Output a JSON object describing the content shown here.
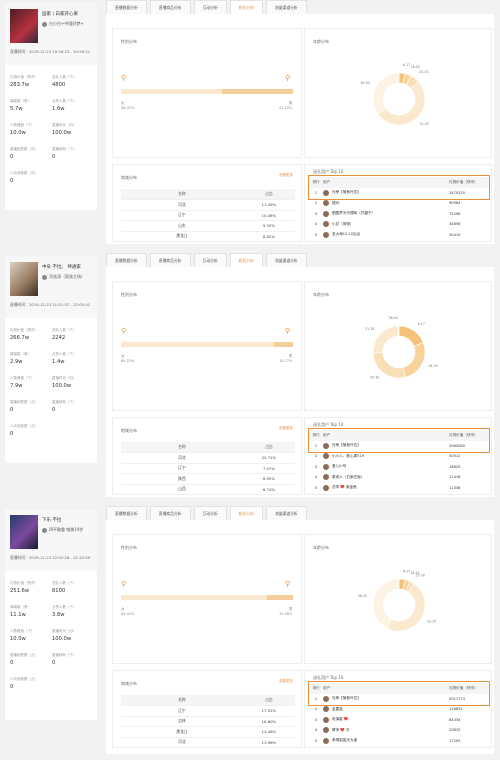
{
  "tabs": [
    "直播数据分析",
    "直播商品分析",
    "互动分析",
    "粉丝分析",
    "流量渠道分析"
  ],
  "active_tab": 3,
  "colors": {
    "accent": "#ee8e3b",
    "donut": [
      "#f5c27a",
      "#f7d29b",
      "#f9dfb6",
      "#fbe9cf",
      "#fdf3e4",
      "#f6b560"
    ]
  },
  "labels": {
    "gender": "性别分布",
    "age": "年龄分布",
    "region": "地域分布",
    "more": "查看更多",
    "region_col1": "名称",
    "region_col2": "占比",
    "top10": "送礼用户 Top 10",
    "col_rank": "排行",
    "col_user": "用户",
    "col_value": "礼物价值（快币）",
    "female": "女",
    "male": "男",
    "stat_labels": [
      "礼物价值（快币）",
      "送礼人数（个）",
      "弹幕数（条）",
      "点赞人数（个）",
      "人数峰值（个）",
      "直播时长（分）",
      "直播销售额（元）",
      "直播转粉（个）",
      "人均消费额（元）"
    ]
  },
  "panels": [
    {
      "anchor": "国家丨白家开心果",
      "tag": "白小白+中国好梦+",
      "time": "直播时间：2019-12-23 19:34:23 - 20:59:21",
      "stats": [
        "283.7w",
        "4800",
        "5.7w",
        "1.6w",
        "10.0w",
        "100.0w",
        "0",
        "0",
        "0"
      ],
      "female_pct": "58.47%",
      "male_pct": "41.53%",
      "female_ratio": 0.5847,
      "age_slices": [
        3.8,
        3.8,
        5.8,
        51.7,
        34.9
      ],
      "age_labels": [
        "6-17",
        "18-24",
        "25-30",
        "31-35",
        "36-40"
      ],
      "region": [
        [
          "河北",
          "11.49%"
        ],
        [
          "辽宁",
          "10.46%"
        ],
        [
          "山东",
          "9.33%"
        ],
        [
          "黑龙江",
          "8.82%"
        ],
        [
          "河南",
          "8.62%"
        ]
      ],
      "top10": [
        [
          "1",
          "光荣【葡萄叶拉】",
          "2470320"
        ],
        [
          "2",
          "德州",
          "90964"
        ],
        [
          "3",
          "图图梦天代理商（托捷子）",
          "75296"
        ],
        [
          "4",
          "小花（荷物）",
          "34656"
        ],
        [
          "5",
          "圣大海12.10后出",
          "30410"
        ]
      ]
    },
    {
      "anchor": "中朵 不拉。 神通家",
      "tag": "司兆涛（家族主场）",
      "time": "直播时间：2019-12-23 21:01:07 - 22:05:41",
      "stats": [
        "266.7w",
        "2242",
        "2.9w",
        "1.4w",
        "7.9w",
        "100.0w",
        "0",
        "0",
        "0"
      ],
      "female_pct": "89.23%",
      "male_pct": "10.77%",
      "female_ratio": 0.8923,
      "age_slices": [
        19.1,
        26.8,
        28.4,
        24.6,
        1.1
      ],
      "age_labels": [
        "6-17",
        "18-24",
        "25-30",
        "31-35",
        "36-40"
      ],
      "region": [
        [
          "河北",
          "20.71%"
        ],
        [
          "辽宁",
          "7.47%"
        ],
        [
          "陕西",
          "6.95%"
        ],
        [
          "山西",
          "6.74%"
        ],
        [
          "山东",
          "5.50%"
        ]
      ],
      "top10": [
        [
          "1",
          "光荣【葡萄叶拉】",
          "2063080"
        ],
        [
          "2",
          "小小人、憨心周519",
          "30512"
        ],
        [
          "3",
          "爱儿小号",
          "18625"
        ],
        [
          "4",
          "泰老六（石家庄版）",
          "11416"
        ],
        [
          "5",
          "恋李 ❤️ 美金鱼",
          "11338"
        ]
      ]
    },
    {
      "anchor": "下乐 不拉",
      "tag": "四平鞍重 唯独19岁",
      "time": "直播时间：2019-12-23 22:02:28 - 01:22:09",
      "stats": [
        "251.6w",
        "8100",
        "11.1w",
        "3.8w",
        "10.0w",
        "100.0w",
        "0",
        "0",
        "0"
      ],
      "female_pct": "84.92%",
      "male_pct": "15.08%",
      "female_ratio": 0.8492,
      "age_slices": [
        4.0,
        3.0,
        2.8,
        48.1,
        42.1
      ],
      "age_labels": [
        "6-17",
        "18-24",
        "25-30",
        "31-35",
        "36-40"
      ],
      "region": [
        [
          "辽宁",
          "17.52%"
        ],
        [
          "吉林",
          "16.60%"
        ],
        [
          "黑龙江",
          "14.46%"
        ],
        [
          "河北",
          "13.96%"
        ],
        [
          "山东",
          "7.25%"
        ]
      ],
      "top10": [
        [
          "1",
          "光荣【葡萄叶拉】",
          "2011774"
        ],
        [
          "2",
          "金露蓝",
          "116832"
        ],
        [
          "3",
          "电演星 ❤️",
          "84334"
        ],
        [
          "4",
          "翠萍 ❤️ 天",
          "20815"
        ],
        [
          "5",
          "孝顺祖蓝光大道",
          "17205"
        ]
      ]
    }
  ]
}
